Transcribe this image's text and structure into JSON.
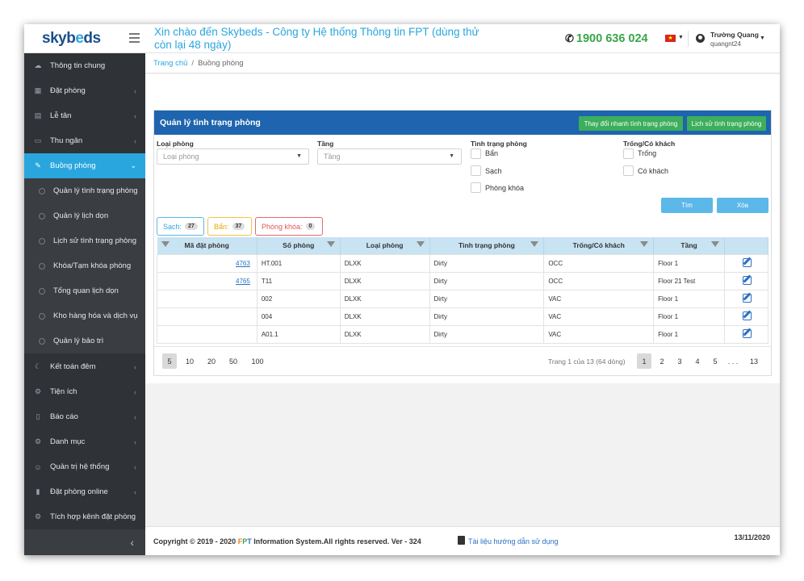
{
  "header": {
    "logo_text": "skybeds",
    "welcome": "Xin chào đến Skybeds - Công ty Hệ thống Thông tin FPT (dùng thử còn lại 48 ngày)",
    "hotline": "1900 636 024",
    "user_name": "Trường Quang",
    "user_id": "quangnt24"
  },
  "sidebar": {
    "items": [
      {
        "label": "Thông tin chung",
        "icon": "cloud-icon"
      },
      {
        "label": "Đặt phòng",
        "icon": "calendar-icon"
      },
      {
        "label": "Lễ tân",
        "icon": "calendar-check-icon"
      },
      {
        "label": "Thu ngân",
        "icon": "money-icon"
      },
      {
        "label": "Buồng phòng",
        "icon": "wrench-icon"
      },
      {
        "label": "Kết toán đêm",
        "icon": "moon-icon"
      },
      {
        "label": "Tiện ích",
        "icon": "gear-icon"
      },
      {
        "label": "Báo cáo",
        "icon": "file-icon"
      },
      {
        "label": "Danh mục",
        "icon": "cogs-icon"
      },
      {
        "label": "Quản trị hệ thống",
        "icon": "users-icon"
      },
      {
        "label": "Đặt phòng online",
        "icon": "book-icon"
      },
      {
        "label": "Tích hợp kênh đặt phòng",
        "icon": "cogs-icon"
      }
    ],
    "sub_items": [
      "Quản lý tình trạng phòng",
      "Quản lý lịch dọn",
      "Lịch sử tình trạng phòng",
      "Khóa/Tạm khóa phòng",
      "Tổng quan lịch dọn",
      "Kho hàng hóa và dịch vụ",
      "Quản lý bảo trì"
    ]
  },
  "breadcrumb": {
    "home": "Trang chủ",
    "current": "Buồng phòng"
  },
  "panel": {
    "title": "Quản lý tình trạng phòng",
    "btn_quick_change": "Thay đổi nhanh tình trạng phòng",
    "btn_history": "Lịch sử tình trạng phòng"
  },
  "filters": {
    "room_type_label": "Loại phòng",
    "room_type_placeholder": "Loại phòng",
    "floor_label": "Tầng",
    "floor_placeholder": "Tầng",
    "status_label": "Tình trạng phòng",
    "status_options": [
      "Bẩn",
      "Sạch",
      "Phòng khóa"
    ],
    "occupancy_label": "Trống/Có khách",
    "occupancy_options": [
      "Trống",
      "Có khách"
    ],
    "btn_search": "Tìm",
    "btn_clear": "Xóa"
  },
  "stats": {
    "clean_label": "Sạch:",
    "clean_count": "27",
    "dirty_label": "Bẩn:",
    "dirty_count": "37",
    "locked_label": "Phòng khóa:",
    "locked_count": "0"
  },
  "table": {
    "headers": [
      "Mã đặt phòng",
      "Số phòng",
      "Loại phòng",
      "Tình trạng phòng",
      "Trống/Có khách",
      "Tầng"
    ],
    "rows": [
      [
        "4763",
        "HT.001",
        "DLXK",
        "Dirty",
        "OCC",
        "Floor 1"
      ],
      [
        "4765",
        "T11",
        "DLXK",
        "Dirty",
        "OCC",
        "Floor 21 Test"
      ],
      [
        "",
        "002",
        "DLXK",
        "Dirty",
        "VAC",
        "Floor 1"
      ],
      [
        "",
        "004",
        "DLXK",
        "Dirty",
        "VAC",
        "Floor 1"
      ],
      [
        "",
        "A01.1",
        "DLXK",
        "Dirty",
        "VAC",
        "Floor 1"
      ]
    ]
  },
  "pager": {
    "sizes": [
      "5",
      "10",
      "20",
      "50",
      "100"
    ],
    "info": "Trang 1 của 13 (64 dòng)",
    "pages": [
      "1",
      "2",
      "3",
      "4",
      "5",
      ". . .",
      "13"
    ]
  },
  "footer": {
    "copyright_pre": "Copyright © 2019 - 2020",
    "fpt_f": "F",
    "fpt_p": "P",
    "fpt_t": "T",
    "copyright_post": "Information System.All rights reserved.  Ver - 324",
    "doc_link": "Tài liệu hướng dẫn sử dụng",
    "date": "13/11/2020"
  },
  "colors": {
    "accent": "#2aa6de",
    "panel_header": "#1f64ae",
    "green_button": "#3cae5c",
    "sidebar_bg": "#2f3338"
  }
}
